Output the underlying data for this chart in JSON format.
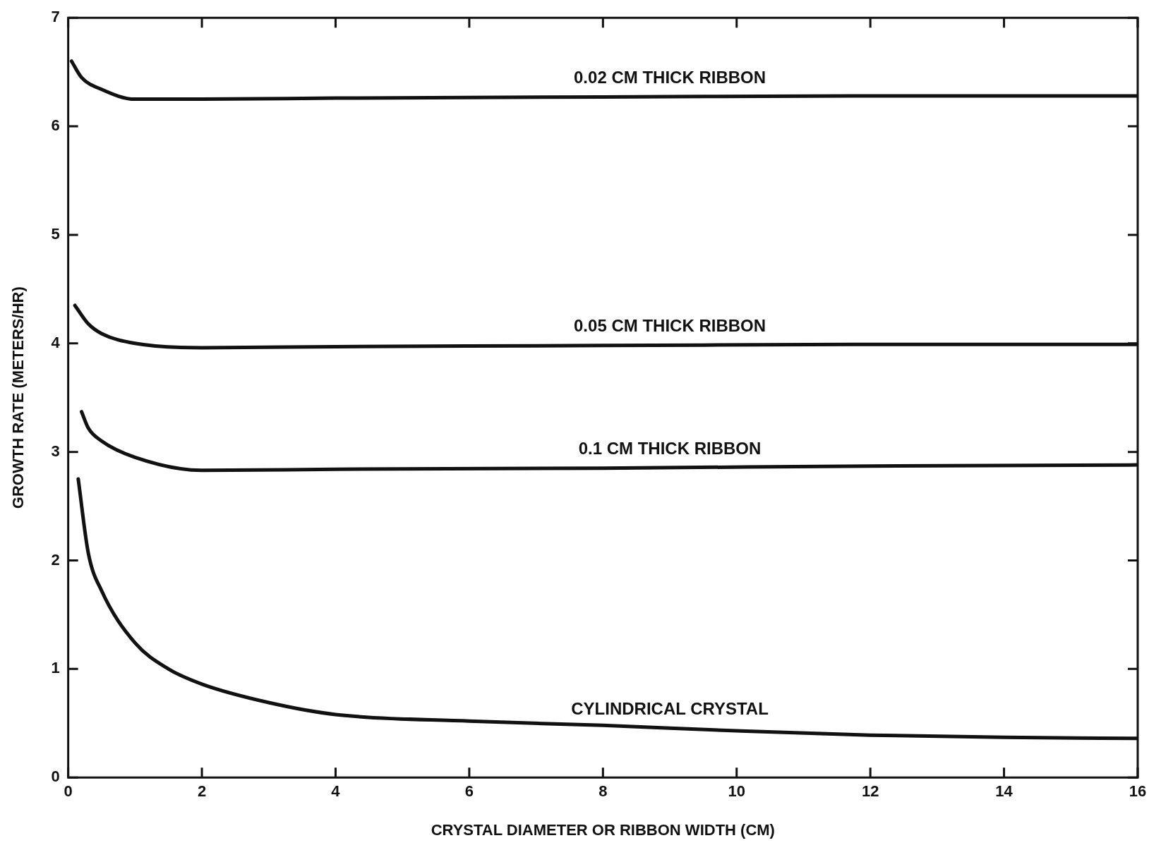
{
  "chart_data": {
    "type": "line",
    "xlabel": "CRYSTAL DIAMETER OR RIBBON WIDTH (CM)",
    "ylabel": "GROWTH RATE (METERS/HR)",
    "xlim": [
      0,
      16
    ],
    "xticks": [
      0,
      2,
      4,
      6,
      8,
      10,
      12,
      14,
      16
    ],
    "ylim": [
      0,
      7
    ],
    "yticks": [
      0,
      1,
      2,
      3,
      4,
      5,
      6,
      7
    ],
    "grid": false,
    "legend": false,
    "marker": "none",
    "line_style": "solid",
    "series": [
      {
        "name": "0.02 CM THICK RIBBON",
        "color": "#111111",
        "x": [
          0.05,
          0.2,
          0.5,
          1,
          2,
          4,
          8,
          12,
          16
        ],
        "values": [
          6.6,
          6.45,
          6.34,
          6.25,
          6.25,
          6.26,
          6.27,
          6.28,
          6.28
        ]
      },
      {
        "name": "0.05 CM THICK RIBBON",
        "color": "#111111",
        "x": [
          0.1,
          0.3,
          0.5,
          1,
          2,
          4,
          8,
          12,
          16
        ],
        "values": [
          4.35,
          4.18,
          4.09,
          4.0,
          3.96,
          3.97,
          3.98,
          3.99,
          3.99
        ]
      },
      {
        "name": "0.1 CM THICK RIBBON",
        "color": "#111111",
        "x": [
          0.2,
          0.3,
          0.5,
          1,
          2,
          4,
          8,
          12,
          16
        ],
        "values": [
          3.37,
          3.22,
          3.1,
          2.95,
          2.83,
          2.84,
          2.85,
          2.87,
          2.88
        ]
      },
      {
        "name": "CYLINDRICAL CRYSTAL",
        "color": "#111111",
        "x": [
          0.15,
          0.3,
          0.5,
          1,
          1.5,
          2,
          3,
          4,
          6,
          8,
          10,
          12,
          14,
          16
        ],
        "values": [
          2.75,
          2.07,
          1.72,
          1.24,
          1.0,
          0.86,
          0.69,
          0.58,
          0.52,
          0.48,
          0.43,
          0.39,
          0.37,
          0.36
        ]
      }
    ]
  }
}
